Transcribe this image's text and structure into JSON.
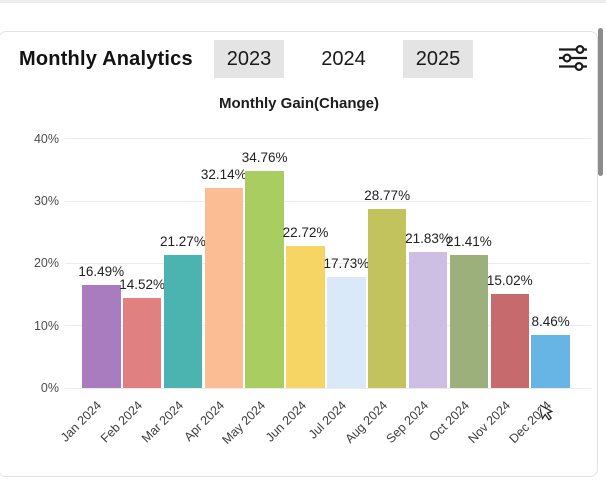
{
  "header": {
    "title": "Monthly Analytics",
    "year_buttons": [
      {
        "label": "2023",
        "highlighted": true
      },
      {
        "label": "2024",
        "highlighted": false
      },
      {
        "label": "2025",
        "highlighted": true
      }
    ],
    "filter_icon": "sliders-icon"
  },
  "chart_data": {
    "type": "bar",
    "title": "Monthly Gain(Change)",
    "categories": [
      "Jan 2024",
      "Feb 2024",
      "Mar 2024",
      "Apr 2024",
      "May 2024",
      "Jun 2024",
      "Jul 2024",
      "Aug 2024",
      "Sep 2024",
      "Oct 2024",
      "Nov 2024",
      "Dec 2024"
    ],
    "values": [
      16.49,
      14.52,
      21.27,
      32.14,
      34.76,
      22.72,
      17.73,
      28.77,
      21.83,
      21.41,
      15.02,
      8.46
    ],
    "value_labels": [
      "16.49%",
      "14.52%",
      "21.27%",
      "32.14%",
      "34.76%",
      "22.72%",
      "17.73%",
      "28.77%",
      "21.83%",
      "21.41%",
      "15.02%",
      "8.46%"
    ],
    "bar_colors": [
      "#a87cbe",
      "#e08080",
      "#4bb4b1",
      "#fbbe94",
      "#aacd62",
      "#f6d565",
      "#d9e9f8",
      "#c2c35c",
      "#cdbfe3",
      "#9bb07a",
      "#c76a6e",
      "#66b5e4"
    ],
    "xlabel": "",
    "ylabel": "",
    "y_ticks": [
      0,
      10,
      20,
      30,
      40
    ],
    "y_tick_labels": [
      "0%",
      "10%",
      "20%",
      "30%",
      "40%"
    ],
    "ylim": [
      0,
      40
    ],
    "grid": true,
    "legend": false,
    "x_label_rotation": -45
  },
  "colors": {
    "button_bg": "#e4e4e4",
    "card_border": "#e3e3e3",
    "gridline": "#ececec",
    "scrollbar": "#8c8c8c"
  }
}
